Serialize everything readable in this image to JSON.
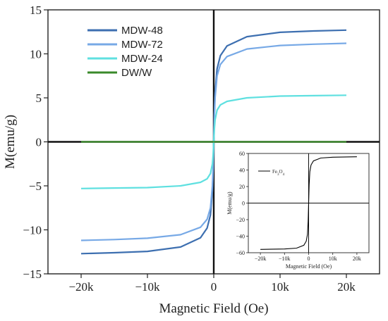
{
  "chart_data": [
    {
      "type": "line",
      "title": "",
      "xlabel": "Magnetic Field (Oe)",
      "ylabel": "M(emu/g)",
      "xlim": [
        -25000,
        25000
      ],
      "ylim": [
        -15,
        15
      ],
      "xticks": [
        -20000,
        -10000,
        0,
        10000,
        20000
      ],
      "xtick_labels": [
        "−20k",
        "−10k",
        "0",
        "10k",
        "20k"
      ],
      "yticks": [
        -15,
        -10,
        -5,
        0,
        5,
        10,
        15
      ],
      "ytick_labels": [
        "−15",
        "−10",
        "−5",
        "0",
        "5",
        "10",
        "15"
      ],
      "legend_position": "top-left",
      "grid": false,
      "x": [
        -20000,
        -15000,
        -10000,
        -5000,
        -2000,
        -1000,
        -500,
        -200,
        -100,
        0,
        100,
        200,
        500,
        1000,
        2000,
        5000,
        10000,
        15000,
        20000
      ],
      "series": [
        {
          "name": "MDW-48",
          "color": "#3d6fb0",
          "values": [
            -12.7,
            -12.6,
            -12.45,
            -11.95,
            -10.9,
            -9.8,
            -8.3,
            -5.6,
            -3.3,
            0,
            3.3,
            5.6,
            8.3,
            9.8,
            10.9,
            11.95,
            12.45,
            12.6,
            12.7
          ]
        },
        {
          "name": "MDW-72",
          "color": "#77a9e6",
          "values": [
            -11.2,
            -11.1,
            -10.95,
            -10.55,
            -9.7,
            -8.8,
            -7.5,
            -5.0,
            -3.0,
            0,
            3.0,
            5.0,
            7.5,
            8.8,
            9.7,
            10.55,
            10.95,
            11.1,
            11.2
          ]
        },
        {
          "name": "MDW-24",
          "color": "#5fe0e0",
          "values": [
            -5.3,
            -5.25,
            -5.2,
            -5.0,
            -4.6,
            -4.2,
            -3.6,
            -2.5,
            -1.5,
            0,
            1.5,
            2.5,
            3.6,
            4.2,
            4.6,
            5.0,
            5.2,
            5.25,
            5.3
          ]
        },
        {
          "name": "DW/W",
          "color": "#3a8a2a",
          "values": [
            0,
            0,
            0,
            0,
            0,
            0,
            0,
            0,
            0,
            0,
            0,
            0,
            0,
            0,
            0,
            0,
            0,
            0,
            0
          ]
        }
      ]
    },
    {
      "type": "line",
      "title": "",
      "xlabel": "Magnetic Field (Oe)",
      "ylabel": "M(emu/g)",
      "xlim": [
        -25000,
        25000
      ],
      "ylim": [
        -60,
        60
      ],
      "xticks": [
        -20000,
        -10000,
        0,
        10000,
        20000
      ],
      "xtick_labels": [
        "−20k",
        "−10k",
        "0",
        "10k",
        "20k"
      ],
      "yticks": [
        -60,
        -40,
        -20,
        0,
        20,
        40,
        60
      ],
      "ytick_labels": [
        "−60",
        "−40",
        "−20",
        "0",
        "20",
        "40",
        "60"
      ],
      "legend_position": "top-left",
      "x": [
        -20000,
        -10000,
        -5000,
        -2000,
        -1000,
        -500,
        -200,
        0,
        200,
        500,
        1000,
        2000,
        5000,
        10000,
        20000
      ],
      "series": [
        {
          "name": "Fe3O4",
          "color": "#000000",
          "values": [
            -56,
            -55.5,
            -54.5,
            -51,
            -46,
            -38,
            -22,
            0,
            22,
            38,
            46,
            51,
            54.5,
            55.5,
            56
          ]
        }
      ]
    }
  ]
}
